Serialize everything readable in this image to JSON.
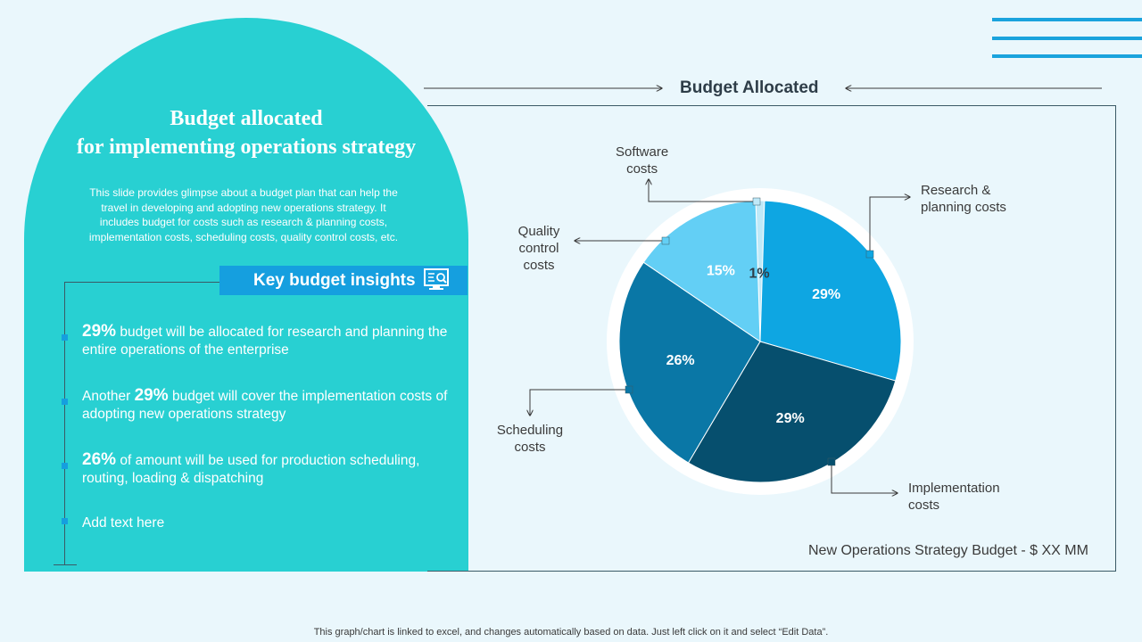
{
  "left_panel": {
    "title_line1": "Budget allocated",
    "title_line2": "for implementing operations strategy",
    "description_lines": [
      "This slide provides  glimpse about  a budget plan that can help the",
      "travel  in developing   and adopting  new operations  strategy. It",
      "includes budget for costs such as research  & planning  costs,",
      "implementation  costs, scheduling costs, quality control costs, etc."
    ],
    "insights_header": "Key budget insights",
    "insights_icon": "monitor-search-icon",
    "insights": [
      {
        "pct": "29%",
        "text": " budget will be allocated for research and planning the entire operations of the enterprise",
        "prefix": ""
      },
      {
        "pct": "29%",
        "text": " budget will cover the implementation costs of adopting new operations strategy",
        "prefix": "Another "
      },
      {
        "pct": "26%",
        "text": " of amount will be used for production scheduling, routing,  loading & dispatching",
        "prefix": ""
      },
      {
        "pct": "",
        "text": "Add text here",
        "prefix": ""
      }
    ]
  },
  "chart_title": "Budget Allocated",
  "callouts": {
    "software": [
      "Software",
      "costs"
    ],
    "research": [
      "Research &",
      "planning costs"
    ],
    "quality": [
      "Quality",
      "control",
      "costs"
    ],
    "scheduling": [
      "Scheduling",
      "costs"
    ],
    "implementation": [
      "Implementation",
      "costs"
    ]
  },
  "budget_note": "New Operations Strategy Budget - $ XX MM",
  "footer": "This graph/chart is linked to excel,  and changes automatically based on data. Just left click on it and select “Edit Data”.",
  "colors": {
    "arch": "#28d0d2",
    "accent": "#159fdf",
    "background": "#eaf7fc"
  },
  "chart_data": {
    "type": "pie",
    "title": "Budget Allocated",
    "slices": [
      {
        "label": "Software costs",
        "value": 1,
        "display": "1%",
        "color": "#bfe9f8"
      },
      {
        "label": "Research & planning costs",
        "value": 29,
        "display": "29%",
        "color": "#0ea6e2"
      },
      {
        "label": "Implementation costs",
        "value": 29,
        "display": "29%",
        "color": "#064f6e"
      },
      {
        "label": "Scheduling costs",
        "value": 26,
        "display": "26%",
        "color": "#0a77a6"
      },
      {
        "label": "Quality control costs",
        "value": 15,
        "display": "15%",
        "color": "#63cff5"
      }
    ]
  }
}
